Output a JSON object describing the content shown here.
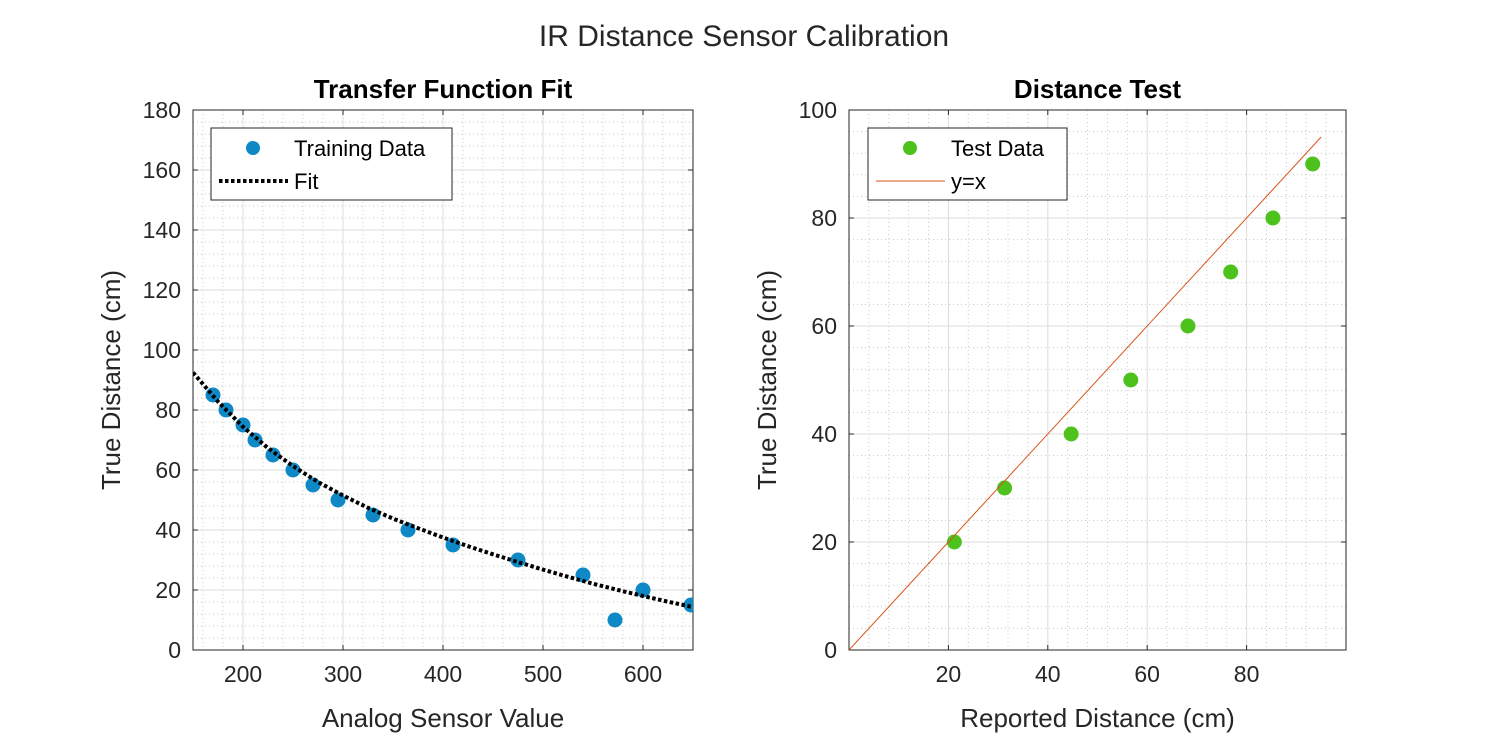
{
  "figure_title": "IR Distance Sensor Calibration",
  "chart_data": [
    {
      "type": "scatter",
      "title": "Transfer Function Fit",
      "xlabel": "Analog Sensor Value",
      "ylabel": "True Distance (cm)",
      "xlim": [
        150,
        650
      ],
      "ylim": [
        0,
        180
      ],
      "xticks": [
        200,
        300,
        400,
        500,
        600
      ],
      "yticks": [
        0,
        20,
        40,
        60,
        80,
        100,
        120,
        140,
        160,
        180
      ],
      "grid": true,
      "minor_grid": true,
      "legend_position": "top-left",
      "series": [
        {
          "name": "Training Data",
          "style": "markers",
          "color": "#0e89c6",
          "x": [
            170,
            183,
            200,
            212,
            230,
            250,
            270,
            295,
            330,
            365,
            410,
            475,
            540,
            572,
            600,
            648
          ],
          "y": [
            85,
            80,
            75,
            70,
            65,
            60,
            55,
            50,
            45,
            40,
            35,
            30,
            25,
            10,
            20,
            15
          ]
        },
        {
          "name": "Fit",
          "style": "dotted-line",
          "color": "#000000",
          "x": [
            150,
            175,
            200,
            225,
            250,
            275,
            300,
            325,
            350,
            375,
            400,
            425,
            450,
            475,
            500,
            525,
            550,
            575,
            600,
            625,
            650
          ],
          "y": [
            92.5,
            82.8,
            74.4,
            67.3,
            61.3,
            56.0,
            51.5,
            47.4,
            43.8,
            40.6,
            37.5,
            34.6,
            31.9,
            29.3,
            26.8,
            24.4,
            22.1,
            20.0,
            18.0,
            16.1,
            14.3
          ]
        }
      ]
    },
    {
      "type": "scatter",
      "title": "Distance Test",
      "xlabel": "Reported Distance (cm)",
      "ylabel": "True Distance (cm)",
      "xlim": [
        0,
        100
      ],
      "ylim": [
        0,
        100
      ],
      "xticks": [
        20,
        40,
        60,
        80
      ],
      "yticks": [
        0,
        20,
        40,
        60,
        80,
        100
      ],
      "grid": true,
      "minor_grid": true,
      "legend_position": "top-left",
      "series": [
        {
          "name": "Test Data",
          "style": "markers",
          "color": "#4dc21d",
          "x": [
            21.2,
            31.3,
            44.7,
            56.7,
            68.2,
            76.8,
            85.3,
            93.3
          ],
          "y": [
            20,
            30,
            40,
            50,
            60,
            70,
            80,
            90
          ]
        },
        {
          "name": "y=x",
          "style": "line",
          "color": "#d95319",
          "x": [
            0,
            95
          ],
          "y": [
            0,
            95
          ]
        }
      ]
    }
  ]
}
